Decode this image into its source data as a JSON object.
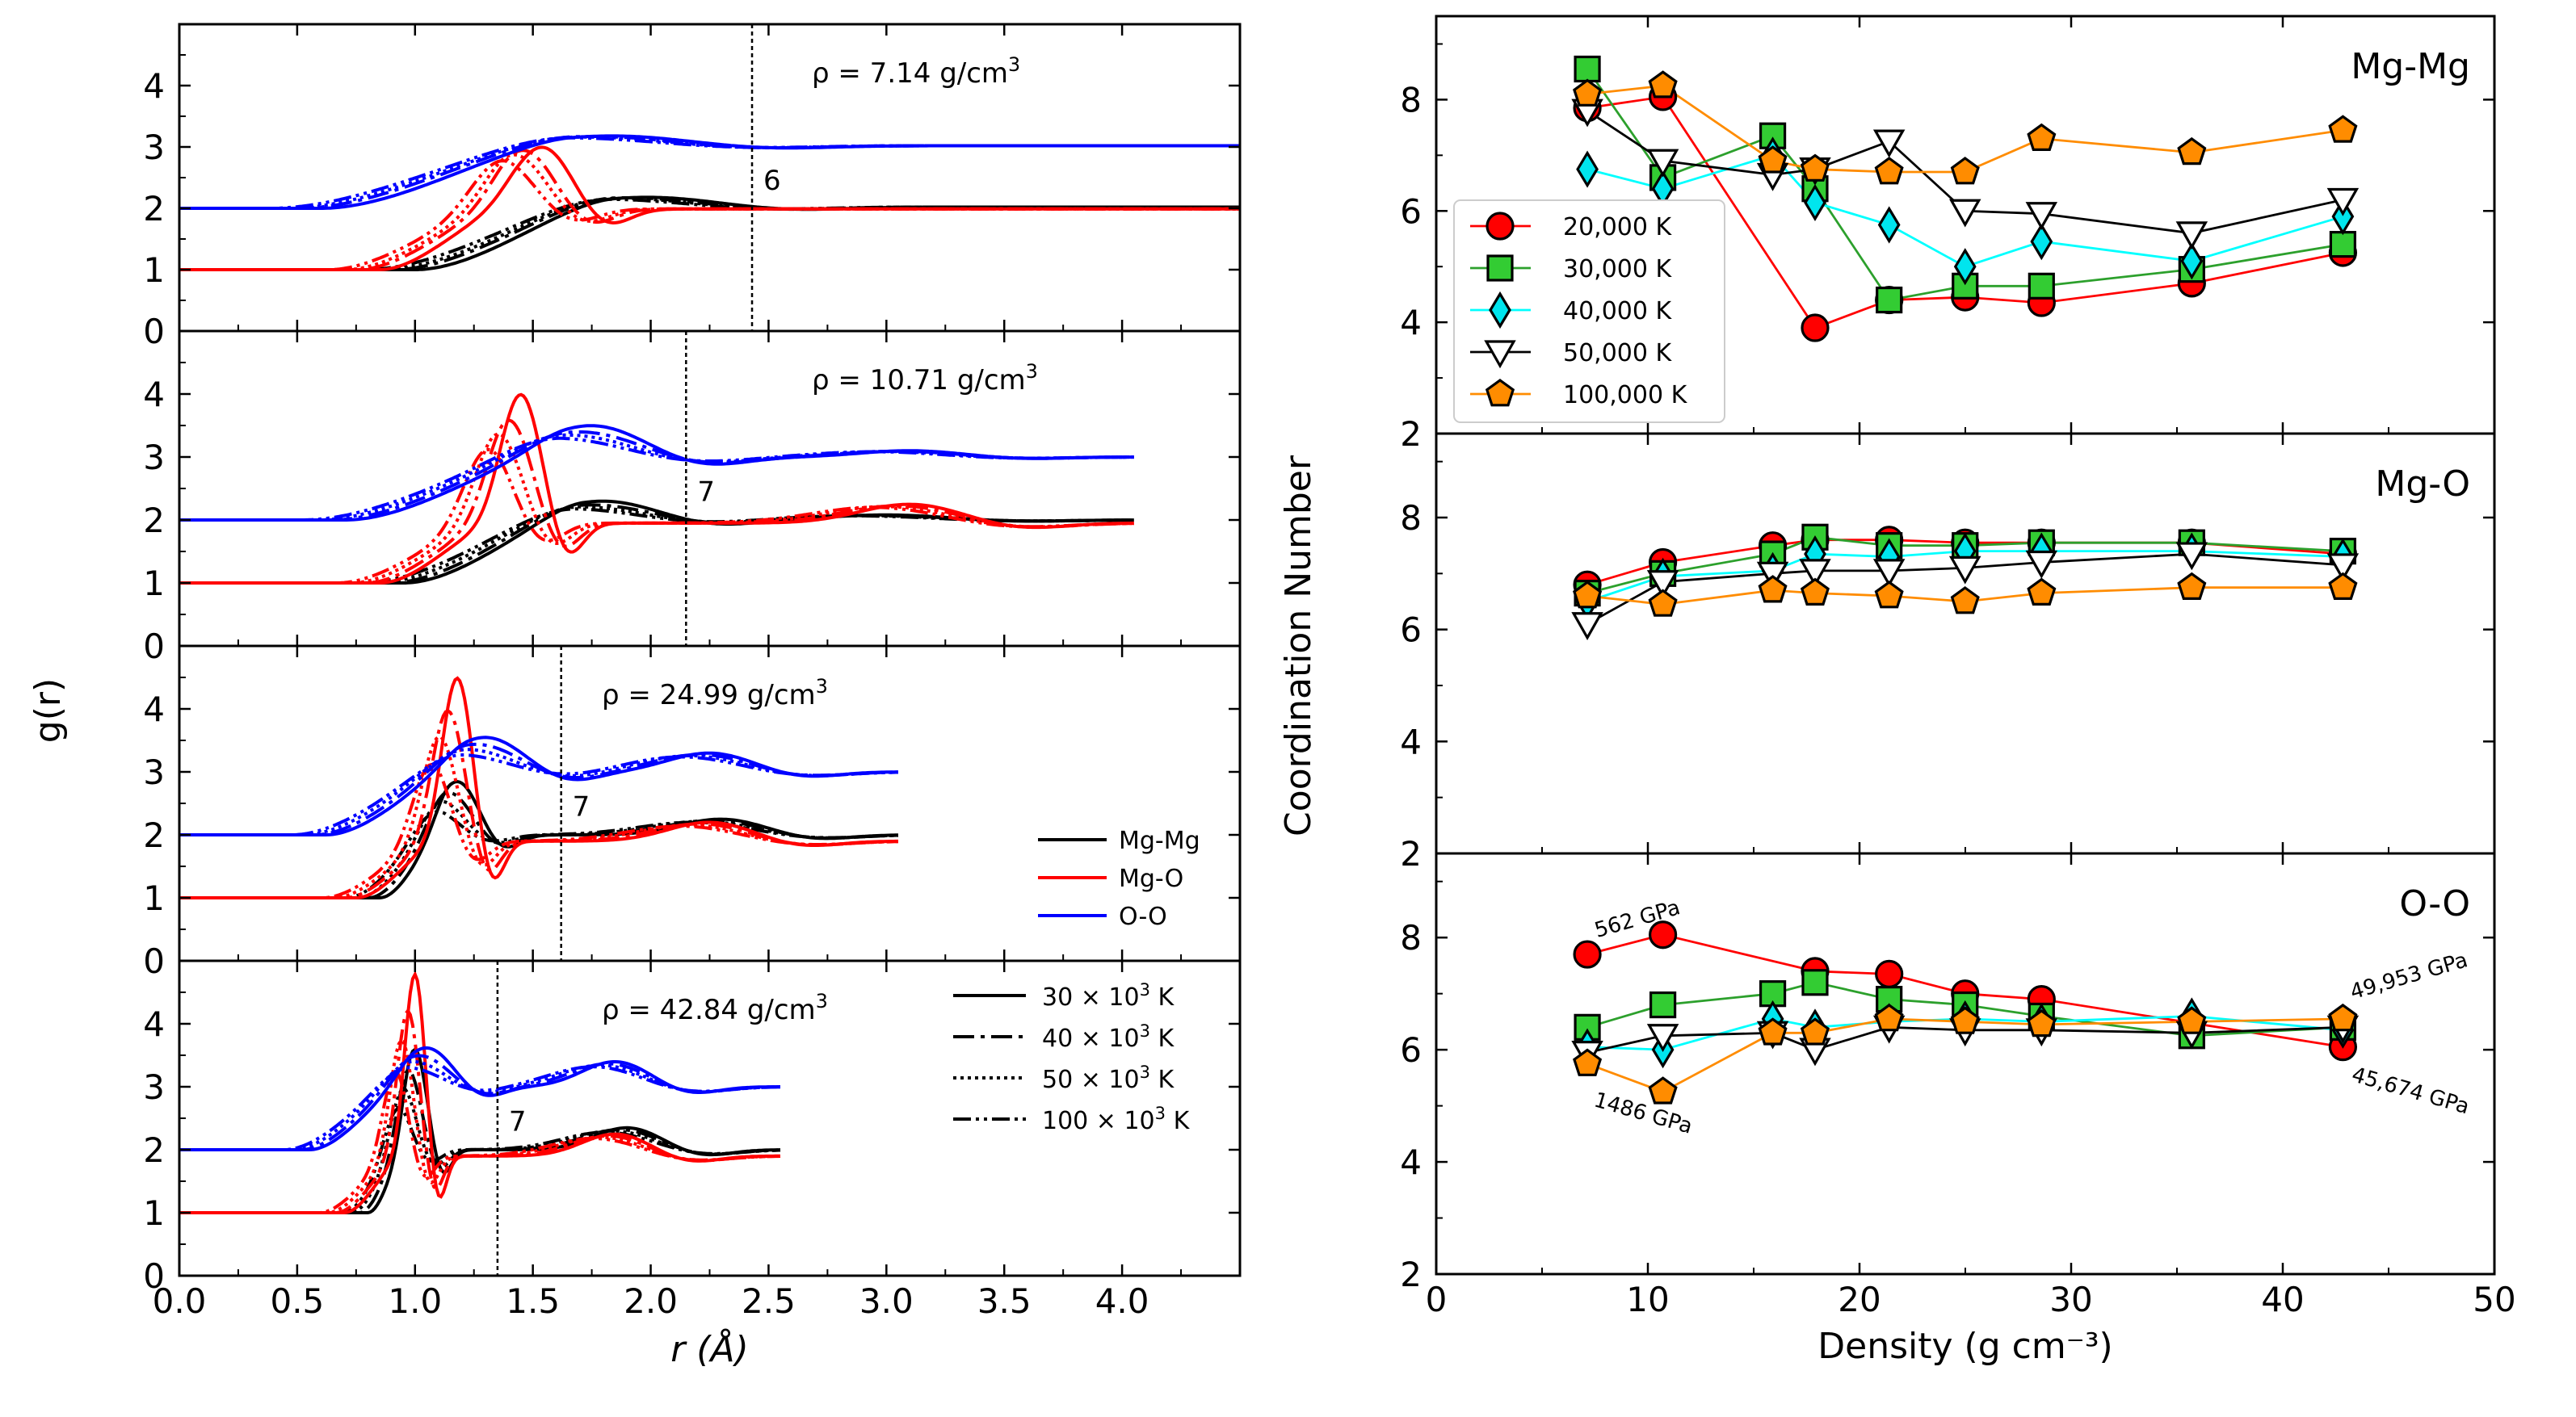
{
  "chart_data": [
    {
      "type": "line",
      "xlabel": "r (Å)",
      "ylabel": "g(r)",
      "xlim": [
        0.0,
        4.5
      ],
      "x_ticks": [
        "0.0",
        "0.5",
        "1.0",
        "1.5",
        "2.0",
        "2.5",
        "3.0",
        "3.5",
        "4.0"
      ],
      "y_ticks": [
        "0",
        "1",
        "2",
        "3",
        "4"
      ],
      "panel_ylim": [
        0,
        5
      ],
      "legend_species": [
        {
          "label": "Mg-Mg",
          "color": "#000000"
        },
        {
          "label": "Mg-O",
          "color": "#ff0000"
        },
        {
          "label": "O-O",
          "color": "#0000ff"
        }
      ],
      "legend_temps": [
        {
          "label_main": "30 × 10",
          "sup": "3",
          "unit": " K",
          "style": "solid"
        },
        {
          "label_main": "40 × 10",
          "sup": "3",
          "unit": " K",
          "style": "dashdot"
        },
        {
          "label_main": "50 × 10",
          "sup": "3",
          "unit": " K",
          "style": "dotted"
        },
        {
          "label_main": "100 × 10",
          "sup": "3",
          "unit": " K",
          "style": "dashdotdot"
        }
      ],
      "panels": [
        {
          "density_label": "ρ = 7.14 g/cm",
          "density_sup": "3",
          "cutoff_r": 2.43,
          "cutoff_label": "6",
          "rmax": 4.5,
          "species": {
            "Mg-Mg": {
              "offset": 1,
              "onset": 0.95,
              "peaks": [
                {
                  "r": 1.95,
                  "h": 1.18,
                  "w": 0.38
                }
              ],
              "tail": 1.02
            },
            "Mg-O": {
              "offset": 1,
              "onset": 0.8,
              "peaks": [
                {
                  "r": 1.5,
                  "h": 2.0,
                  "w": 0.17
                }
              ],
              "tail": 0.99
            },
            "O-O": {
              "offset": 2,
              "onset": 0.55,
              "peaks": [
                {
                  "r": 1.8,
                  "h": 1.18,
                  "w": 0.42
                }
              ],
              "tail": 1.02
            }
          },
          "temp_shift": [
            0.04,
            -0.04,
            -0.08,
            -0.14
          ],
          "temp_scale": [
            1.0,
            0.95,
            0.88,
            0.8
          ]
        },
        {
          "density_label": "ρ = 10.71 g/cm",
          "density_sup": "3",
          "cutoff_r": 2.15,
          "cutoff_label": "7",
          "rmax": 4.05,
          "species": {
            "Mg-Mg": {
              "offset": 1,
              "onset": 0.95,
              "peaks": [
                {
                  "r": 1.8,
                  "h": 1.3,
                  "w": 0.3
                },
                {
                  "r": 3.0,
                  "h": 1.08,
                  "w": 0.35
                }
              ],
              "tail": 1.0
            },
            "Mg-O": {
              "offset": 1,
              "onset": 0.85,
              "peaks": [
                {
                  "r": 1.45,
                  "h": 3.0,
                  "w": 0.12
                },
                {
                  "r": 3.1,
                  "h": 1.25,
                  "w": 0.3
                }
              ],
              "tail": 0.95
            },
            "O-O": {
              "offset": 2,
              "onset": 0.7,
              "peaks": [
                {
                  "r": 1.75,
                  "h": 1.5,
                  "w": 0.3
                },
                {
                  "r": 3.1,
                  "h": 1.1,
                  "w": 0.3
                }
              ],
              "tail": 1.0
            }
          },
          "temp_shift": [
            0.0,
            -0.05,
            -0.1,
            -0.15
          ],
          "temp_scale": [
            1.0,
            0.8,
            0.7,
            0.6
          ]
        },
        {
          "density_label": "ρ = 24.99 g/cm",
          "density_sup": "3",
          "cutoff_r": 1.62,
          "cutoff_label": "7",
          "rmax": 3.05,
          "species": {
            "Mg-Mg": {
              "offset": 1,
              "onset": 0.85,
              "peaks": [
                {
                  "r": 1.18,
                  "h": 1.85,
                  "w": 0.12
                },
                {
                  "r": 2.3,
                  "h": 1.25,
                  "w": 0.25
                }
              ],
              "tail": 1.0
            },
            "Mg-O": {
              "offset": 1,
              "onset": 0.75,
              "peaks": [
                {
                  "r": 1.18,
                  "h": 3.5,
                  "w": 0.09
                },
                {
                  "r": 2.25,
                  "h": 1.2,
                  "w": 0.25
                }
              ],
              "tail": 0.9
            },
            "O-O": {
              "offset": 2,
              "onset": 0.62,
              "peaks": [
                {
                  "r": 1.3,
                  "h": 1.55,
                  "w": 0.22
                },
                {
                  "r": 2.25,
                  "h": 1.3,
                  "w": 0.25
                }
              ],
              "tail": 1.0
            }
          },
          "temp_shift": [
            0.0,
            -0.04,
            -0.08,
            -0.12
          ],
          "temp_scale": [
            1.0,
            0.8,
            0.65,
            0.5
          ]
        },
        {
          "density_label": "ρ = 42.84 g/cm",
          "density_sup": "3",
          "cutoff_r": 1.35,
          "cutoff_label": "7",
          "rmax": 2.55,
          "species": {
            "Mg-Mg": {
              "offset": 1,
              "onset": 0.8,
              "peaks": [
                {
                  "r": 1.0,
                  "h": 2.6,
                  "w": 0.07
                },
                {
                  "r": 1.9,
                  "h": 1.35,
                  "w": 0.2
                }
              ],
              "tail": 1.0
            },
            "Mg-O": {
              "offset": 1,
              "onset": 0.7,
              "peaks": [
                {
                  "r": 1.0,
                  "h": 3.8,
                  "w": 0.06
                },
                {
                  "r": 1.85,
                  "h": 1.25,
                  "w": 0.2
                }
              ],
              "tail": 0.9
            },
            "O-O": {
              "offset": 2,
              "onset": 0.55,
              "peaks": [
                {
                  "r": 1.05,
                  "h": 1.62,
                  "w": 0.15
                },
                {
                  "r": 1.85,
                  "h": 1.4,
                  "w": 0.2
                }
              ],
              "tail": 1.0
            }
          },
          "temp_shift": [
            0.0,
            -0.03,
            -0.06,
            -0.09
          ],
          "temp_scale": [
            1.0,
            0.8,
            0.65,
            0.5
          ]
        }
      ]
    },
    {
      "type": "line",
      "xlabel": "Density (g cm⁻³)",
      "ylabel": "Coordination Number",
      "xlim": [
        0,
        50
      ],
      "ylim": [
        2,
        9.5
      ],
      "x_ticks": [
        "0",
        "10",
        "20",
        "30",
        "40",
        "50"
      ],
      "y_ticks": [
        "2",
        "4",
        "6",
        "8"
      ],
      "x": [
        7.14,
        10.71,
        15.9,
        17.9,
        21.4,
        24.99,
        28.6,
        35.7,
        42.84
      ],
      "series_styles": [
        {
          "name": "20,000 K",
          "line": "#ff0000",
          "fill": "#ff0000",
          "marker": "circle"
        },
        {
          "name": "30,000 K",
          "line": "#2ca02c",
          "fill": "#33cc33",
          "marker": "square"
        },
        {
          "name": "40,000 K",
          "line": "#00ffff",
          "fill": "#00e5ee",
          "marker": "diamond"
        },
        {
          "name": "50,000 K",
          "line": "#000000",
          "fill": "#ffffff",
          "marker": "triangle-down"
        },
        {
          "name": "100,000 K",
          "line": "#ff8c00",
          "fill": "#ff8c00",
          "marker": "pentagon"
        }
      ],
      "panels": [
        {
          "label": "Mg-Mg",
          "series": [
            {
              "name": "20,000 K",
              "values": [
                7.85,
                8.05,
                null,
                3.9,
                4.4,
                4.45,
                4.35,
                4.7,
                5.25
              ]
            },
            {
              "name": "30,000 K",
              "values": [
                8.55,
                6.6,
                7.35,
                6.4,
                4.4,
                4.65,
                4.65,
                4.95,
                5.4
              ]
            },
            {
              "name": "40,000 K",
              "values": [
                6.75,
                6.4,
                7.0,
                6.15,
                5.75,
                5.0,
                5.45,
                5.1,
                5.9
              ]
            },
            {
              "name": "50,000 K",
              "values": [
                7.8,
                6.9,
                6.65,
                6.75,
                7.25,
                6.0,
                5.95,
                5.6,
                6.2
              ]
            },
            {
              "name": "100,000 K",
              "values": [
                8.1,
                8.25,
                6.9,
                6.75,
                6.7,
                6.7,
                7.3,
                7.05,
                7.45
              ]
            }
          ]
        },
        {
          "label": "Mg-O",
          "series": [
            {
              "name": "20,000 K",
              "values": [
                6.8,
                7.2,
                7.5,
                7.6,
                7.6,
                7.55,
                7.55,
                7.55,
                7.35
              ]
            },
            {
              "name": "30,000 K",
              "values": [
                6.65,
                7.0,
                7.35,
                7.65,
                7.5,
                7.5,
                7.55,
                7.55,
                7.4
              ]
            },
            {
              "name": "40,000 K",
              "values": [
                6.5,
                6.95,
                7.05,
                7.35,
                7.3,
                7.4,
                7.4,
                7.4,
                7.3
              ]
            },
            {
              "name": "50,000 K",
              "values": [
                6.1,
                6.85,
                7.0,
                7.05,
                7.05,
                7.1,
                7.2,
                7.35,
                7.15
              ]
            },
            {
              "name": "100,000 K",
              "values": [
                6.6,
                6.45,
                6.7,
                6.65,
                6.6,
                6.5,
                6.65,
                6.75,
                6.75
              ]
            }
          ]
        },
        {
          "label": "O-O",
          "series": [
            {
              "name": "20,000 K",
              "values": [
                7.7,
                8.05,
                null,
                7.4,
                7.35,
                7.0,
                6.9,
                null,
                6.05
              ]
            },
            {
              "name": "30,000 K",
              "values": [
                6.4,
                6.8,
                7.0,
                7.2,
                6.9,
                6.8,
                6.6,
                6.25,
                6.4
              ]
            },
            {
              "name": "40,000 K",
              "values": [
                6.05,
                6.0,
                6.55,
                6.4,
                6.5,
                6.55,
                6.5,
                6.6,
                6.35
              ]
            },
            {
              "name": "50,000 K",
              "values": [
                5.95,
                6.25,
                6.3,
                6.0,
                6.4,
                6.35,
                6.35,
                6.3,
                6.4
              ]
            },
            {
              "name": "100,000 K",
              "values": [
                5.75,
                5.25,
                6.3,
                6.3,
                6.55,
                6.5,
                6.45,
                6.5,
                6.55
              ]
            }
          ],
          "annotations": [
            "562 GPa",
            "1486 GPa",
            "49,953 GPa",
            "45,674 GPa"
          ]
        }
      ]
    }
  ]
}
